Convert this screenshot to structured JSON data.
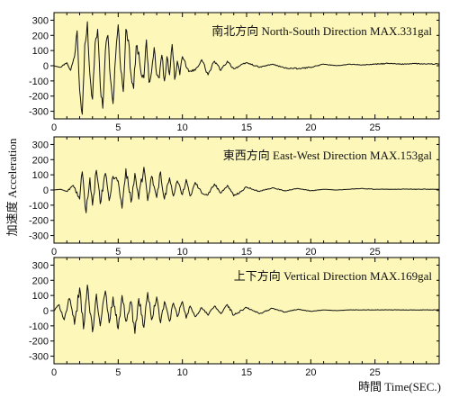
{
  "y_axis_label": "加速度 Acceleration",
  "x_axis_label": "時間 Time(SEC.)",
  "colors": {
    "plot_background": "#fdf8b9",
    "trace": "#111111",
    "frame": "#000000"
  },
  "chart_data": [
    {
      "type": "line",
      "title": "南北方向 North-South Direction MAX.331gal",
      "xlim": [
        0,
        30
      ],
      "ylim": [
        -350,
        350
      ],
      "x_ticks": [
        0,
        5,
        10,
        15,
        20,
        25
      ],
      "y_ticks": [
        300,
        200,
        100,
        0,
        -100,
        -200,
        -300
      ],
      "x_tick_labels": [
        "0",
        "5",
        "10",
        "15",
        "20",
        "25"
      ],
      "y_tick_labels": [
        "300",
        "200",
        "100",
        "0",
        "-100",
        "-200",
        "-300"
      ],
      "max_abs": 331,
      "series": [
        {
          "x": [
            0,
            0.5,
            1,
            1.3,
            1.6,
            1.8,
            2.0,
            2.2,
            2.4,
            2.6,
            2.8,
            3.0,
            3.2,
            3.4,
            3.6,
            3.8,
            4.0,
            4.2,
            4.4,
            4.6,
            4.8,
            5.0,
            5.2,
            5.4,
            5.6,
            5.8,
            6.0,
            6.2,
            6.4,
            6.6,
            6.8,
            7.0,
            7.2,
            7.4,
            7.6,
            7.8,
            8.0,
            8.2,
            8.4,
            8.6,
            8.8,
            9.0,
            9.2,
            9.4,
            9.6,
            9.8,
            10.0,
            10.5,
            11,
            11.5,
            12,
            12.5,
            13,
            13.5,
            14,
            15,
            16,
            17,
            18,
            19,
            20,
            21,
            22,
            23,
            24,
            25,
            26,
            27,
            28,
            29,
            30
          ],
          "y": [
            0,
            -10,
            20,
            -30,
            60,
            230,
            -160,
            -320,
            140,
            290,
            -60,
            -220,
            150,
            240,
            -130,
            -280,
            100,
            200,
            -90,
            -250,
            60,
            270,
            -30,
            -170,
            240,
            170,
            -60,
            -150,
            130,
            90,
            -60,
            -80,
            170,
            -110,
            -40,
            120,
            -60,
            -80,
            70,
            -100,
            60,
            -60,
            140,
            -90,
            30,
            -60,
            60,
            -40,
            -30,
            40,
            -60,
            30,
            -30,
            30,
            -20,
            20,
            -10,
            10,
            -15,
            -20,
            -10,
            10,
            0,
            10,
            5,
            10,
            15,
            10,
            15,
            10,
            12
          ]
        }
      ]
    },
    {
      "type": "line",
      "title": "東西方向 East-West Direction MAX.153gal",
      "xlim": [
        0,
        30
      ],
      "ylim": [
        -350,
        350
      ],
      "x_ticks": [
        0,
        5,
        10,
        15,
        20,
        25
      ],
      "y_ticks": [
        300,
        200,
        100,
        0,
        -100,
        -200,
        -300
      ],
      "x_tick_labels": [
        "0",
        "5",
        "10",
        "15",
        "20",
        "25"
      ],
      "y_tick_labels": [
        "300",
        "200",
        "100",
        "0",
        "-100",
        "-200",
        "-300"
      ],
      "max_abs": 153,
      "series": [
        {
          "x": [
            0,
            0.5,
            1,
            1.5,
            2.0,
            2.2,
            2.5,
            2.8,
            3.0,
            3.3,
            3.6,
            4.0,
            4.3,
            4.6,
            5.0,
            5.3,
            5.6,
            6.0,
            6.3,
            6.6,
            7.0,
            7.3,
            7.6,
            8.0,
            8.3,
            8.6,
            9.0,
            9.3,
            9.6,
            10.0,
            10.3,
            10.6,
            11,
            11.5,
            12,
            12.5,
            13,
            13.5,
            14,
            15,
            16,
            17,
            18,
            19,
            20,
            21,
            22,
            23,
            24,
            25,
            26,
            27,
            28,
            29,
            30
          ],
          "y": [
            0,
            5,
            -10,
            30,
            -60,
            120,
            -150,
            80,
            -100,
            130,
            -90,
            110,
            -70,
            90,
            60,
            -120,
            140,
            -80,
            110,
            -60,
            150,
            -70,
            90,
            -50,
            120,
            -60,
            80,
            -40,
            60,
            -30,
            70,
            -40,
            50,
            -20,
            -30,
            40,
            -20,
            30,
            -40,
            20,
            -10,
            15,
            -5,
            10,
            -5,
            5,
            0,
            5,
            10,
            5,
            5,
            5,
            5,
            5,
            5
          ]
        }
      ]
    },
    {
      "type": "line",
      "title": "上下方向 Vertical Direction MAX.169gal",
      "xlim": [
        0,
        30
      ],
      "ylim": [
        -350,
        350
      ],
      "x_ticks": [
        0,
        5,
        10,
        15,
        20,
        25
      ],
      "y_ticks": [
        300,
        200,
        100,
        0,
        -100,
        -200,
        -300
      ],
      "x_tick_labels": [
        "0",
        "5",
        "10",
        "15",
        "20",
        "25"
      ],
      "y_tick_labels": [
        "300",
        "200",
        "100",
        "0",
        "-100",
        "-200",
        "-300"
      ],
      "max_abs": 169,
      "series": [
        {
          "x": [
            0,
            0.4,
            0.8,
            1.2,
            1.6,
            2.0,
            2.3,
            2.6,
            3.0,
            3.3,
            3.6,
            4.0,
            4.3,
            4.6,
            5.0,
            5.3,
            5.6,
            6.0,
            6.3,
            6.6,
            7.0,
            7.3,
            7.6,
            8.0,
            8.3,
            8.6,
            9.0,
            9.3,
            9.6,
            10.0,
            10.3,
            10.6,
            11,
            11.5,
            12,
            12.5,
            13,
            13.5,
            14,
            15,
            16,
            17,
            18,
            19,
            20,
            21,
            22,
            23,
            24,
            25,
            26,
            27,
            28,
            29,
            30
          ],
          "y": [
            0,
            40,
            -60,
            80,
            -90,
            150,
            -120,
            169,
            -140,
            110,
            -100,
            130,
            -80,
            90,
            -120,
            100,
            -70,
            60,
            -150,
            80,
            -110,
            120,
            -60,
            90,
            -80,
            60,
            -70,
            50,
            -40,
            60,
            -50,
            30,
            -40,
            20,
            -30,
            30,
            -20,
            40,
            -30,
            20,
            -20,
            15,
            -10,
            10,
            -5,
            5,
            0,
            5,
            5,
            5,
            5,
            5,
            5,
            5,
            5
          ]
        }
      ]
    }
  ]
}
